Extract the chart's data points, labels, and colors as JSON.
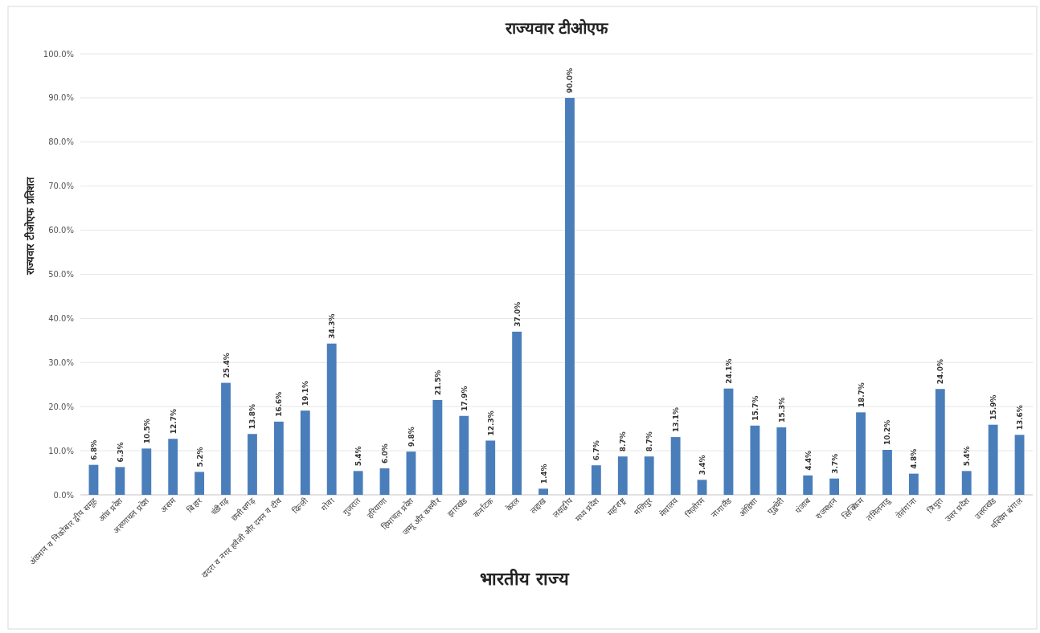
{
  "chart_data": {
    "type": "bar",
    "title": "राज्यवार टीओएफ",
    "xlabel": "भारतीय राज्य",
    "ylabel": "राज्यवार टीओएफ प्रतिशत",
    "categories": [
      "अंडमान व निकोबार द्वीप समूह",
      "आंध्र प्रदेश",
      "अरुणाचल प्रदेश",
      "असम",
      "बिहार",
      "चंडीगढ़",
      "छत्तीसगढ़",
      "दादरा व नगर हवेली और दमन व दीव",
      "दिल्ली",
      "गोवा",
      "गुजरात",
      "हरियाणा",
      "हिमाचल प्रदेश",
      "जम्मू और कश्मीर",
      "झारखंड",
      "कर्नाटक",
      "केरल",
      "लद्दाख",
      "लक्षद्वीप",
      "मध्य प्रदेश",
      "महाराष्ट्र",
      "मणिपुर",
      "मेघालय",
      "मिज़ोरम",
      "नागालैंड",
      "ओडिशा",
      "पुडुचेरी",
      "पंजाब",
      "राजस्थान",
      "सिक्किम",
      "तमिलनाडु",
      "तेलंगाना",
      "त्रिपुरा",
      "उत्तर प्रदेश",
      "उत्तराखंड",
      "पश्चिम बंगाल"
    ],
    "values": [
      6.8,
      6.3,
      10.5,
      12.7,
      5.2,
      25.4,
      13.8,
      16.6,
      19.1,
      34.3,
      5.4,
      6.0,
      9.8,
      21.5,
      17.9,
      12.3,
      37.0,
      1.4,
      90.0,
      6.7,
      8.7,
      8.7,
      13.1,
      3.4,
      24.1,
      15.7,
      15.3,
      4.4,
      3.7,
      18.7,
      10.2,
      4.8,
      24.0,
      5.4,
      15.9,
      13.6
    ],
    "value_labels": [
      "6.8%",
      "6.3%",
      "10.5%",
      "12.7%",
      "5.2%",
      "25.4%",
      "13.8%",
      "16.6%",
      "19.1%",
      "34.3%",
      "5.4%",
      "6.0%",
      "9.8%",
      "21.5%",
      "17.9%",
      "12.3%",
      "37.0%",
      "1.4%",
      "90.0%",
      "6.7%",
      "8.7%",
      "8.7%",
      "13.1%",
      "3.4%",
      "24.1%",
      "15.7%",
      "15.3%",
      "4.4%",
      "3.7%",
      "18.7%",
      "10.2%",
      "4.8%",
      "24.0%",
      "5.4%",
      "15.9%",
      "13.6%"
    ],
    "color": "#4a7ebb",
    "ylim": [
      0,
      100
    ],
    "yticks": [
      {
        "value": 0,
        "label": "0.0%"
      },
      {
        "value": 10,
        "label": "10.0%"
      },
      {
        "value": 20,
        "label": "20.0%"
      },
      {
        "value": 30,
        "label": "30.0%"
      },
      {
        "value": 40,
        "label": "40.0%"
      },
      {
        "value": 50,
        "label": "50.0%"
      },
      {
        "value": 60,
        "label": "60.0%"
      },
      {
        "value": 70,
        "label": "70.0%"
      },
      {
        "value": 80,
        "label": "80.0%"
      },
      {
        "value": 90,
        "label": "90.0%"
      },
      {
        "value": 100,
        "label": "100.0%"
      }
    ],
    "grid": "y"
  }
}
